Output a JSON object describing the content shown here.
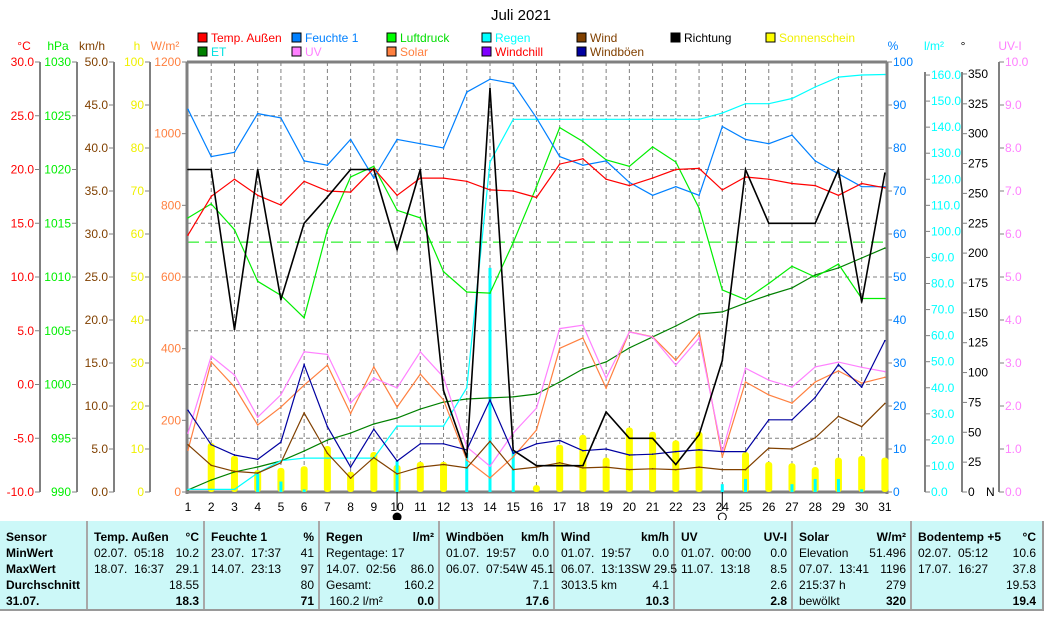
{
  "chart_data": {
    "type": "line",
    "title": "Juli 2021",
    "x": [
      1,
      2,
      3,
      4,
      5,
      6,
      7,
      8,
      9,
      10,
      11,
      12,
      13,
      14,
      15,
      16,
      17,
      18,
      19,
      20,
      21,
      22,
      23,
      24,
      25,
      26,
      27,
      28,
      29,
      30,
      31
    ],
    "x_tick_labels": [
      "1",
      "2",
      "3",
      "4",
      "5",
      "6",
      "7",
      "8",
      "9",
      "10",
      "11",
      "12",
      "13",
      "14",
      "15",
      "16",
      "17",
      "18",
      "19",
      "20",
      "21",
      "22",
      "23",
      "24",
      "25",
      "26",
      "27",
      "28",
      "29",
      "30",
      "31"
    ],
    "grid": true,
    "legend_position": "top",
    "axes": {
      "temp": {
        "unit": "°C",
        "side": "left",
        "color": "#ff0000",
        "range": [
          -10,
          30
        ],
        "ticks": [
          "30.0",
          "25.0",
          "20.0",
          "15.0",
          "10.0",
          "5.0",
          "0.0",
          "-5.0",
          "-10.0"
        ]
      },
      "press": {
        "unit": "hPa",
        "side": "left",
        "color": "#00ee00",
        "range": [
          990,
          1030
        ],
        "ticks": [
          "1030",
          "1025",
          "1020",
          "1015",
          "1010",
          "1005",
          "1000",
          "995",
          "990"
        ]
      },
      "wind": {
        "unit": "km/h",
        "side": "left",
        "color": "#804000",
        "range": [
          0,
          50
        ],
        "ticks": [
          "50.0",
          "45.0",
          "40.0",
          "35.0",
          "30.0",
          "25.0",
          "20.0",
          "15.0",
          "10.0",
          "5.0",
          "0.0"
        ]
      },
      "sun": {
        "unit": "h",
        "side": "left",
        "color": "#f0f000",
        "range": [
          0,
          100
        ],
        "ticks": [
          "100",
          "90",
          "80",
          "70",
          "60",
          "50",
          "40",
          "30",
          "20",
          "10",
          "0"
        ]
      },
      "solar": {
        "unit": "W/m²",
        "side": "left",
        "color": "#ff8040",
        "range": [
          0,
          1200
        ],
        "ticks": [
          "1200",
          "1000",
          "800",
          "600",
          "400",
          "200",
          "0"
        ]
      },
      "hum": {
        "unit": "%",
        "side": "right",
        "color": "#0080ff",
        "range": [
          0,
          100
        ],
        "ticks": [
          "100",
          "90",
          "80",
          "70",
          "60",
          "50",
          "40",
          "30",
          "20",
          "10",
          "0"
        ]
      },
      "rain": {
        "unit": "l/m²",
        "side": "right",
        "color": "#00ffff",
        "range": [
          0,
          165
        ],
        "ticks": [
          "160.0",
          "150.0",
          "140.0",
          "130.0",
          "120.0",
          "110.0",
          "100.0",
          "90.0",
          "80.0",
          "70.0",
          "60.0",
          "50.0",
          "40.0",
          "30.0",
          "20.0",
          "10.0",
          "0.0"
        ]
      },
      "dir": {
        "unit": "°",
        "side": "right",
        "color": "#000000",
        "range": [
          0,
          360
        ],
        "ticks": [
          "350",
          "325",
          "300",
          "275",
          "250",
          "225",
          "200",
          "175",
          "150",
          "125",
          "100",
          "75",
          "50",
          "25",
          "0"
        ],
        "zero_label": "N"
      },
      "uv": {
        "unit": "UV-I",
        "side": "right",
        "color": "#ff80ff",
        "range": [
          0,
          10
        ],
        "ticks": [
          "10.0",
          "9.0",
          "8.0",
          "7.0",
          "6.0",
          "5.0",
          "4.0",
          "3.0",
          "2.0",
          "1.0",
          "0.0"
        ]
      }
    },
    "reference_lines": [
      {
        "axis": "press",
        "value": 1013.25,
        "color": "#00ee00"
      }
    ],
    "bars": [
      {
        "name": "Sonnenschein",
        "axis": "sun",
        "color": "#ffff00",
        "values": [
          0,
          11.4,
          8.4,
          5.1,
          5.6,
          6,
          10.7,
          4.7,
          9.3,
          6.3,
          7,
          7,
          0,
          0,
          0,
          1.6,
          11,
          13.3,
          8,
          15,
          14,
          12,
          14,
          0,
          9.3,
          7,
          6.7,
          5.8,
          8,
          8.4,
          8
        ]
      },
      {
        "name": "Regen (Tag)",
        "axis": "rain",
        "color": "#00ffff",
        "values": [
          0,
          0,
          0,
          7,
          4,
          1,
          0,
          0,
          0,
          12,
          0,
          0,
          15,
          86,
          16,
          0,
          0,
          0,
          0,
          0,
          0,
          0,
          0,
          3,
          5,
          0,
          3,
          5,
          5,
          1,
          0
        ]
      }
    ],
    "series": [
      {
        "name": "ET",
        "axis": "rain",
        "color": "#008000",
        "values": [
          0.8,
          4.6,
          7.7,
          9.6,
          11.9,
          15.7,
          19.9,
          22.6,
          26.1,
          28.4,
          31.8,
          34.5,
          35.7,
          36.1,
          36.5,
          37.6,
          42.2,
          47.2,
          49.9,
          55.3,
          59.5,
          63.7,
          68.3,
          69.1,
          72.5,
          75.6,
          78.3,
          83.3,
          86,
          89.8,
          93.6
        ]
      },
      {
        "name": "Regen",
        "axis": "rain",
        "color": "#00ffff",
        "values": [
          1,
          1,
          1,
          7.3,
          12,
          13,
          13,
          13,
          13,
          25.3,
          25.3,
          25.3,
          40,
          126.6,
          143,
          143,
          143,
          143,
          143,
          143,
          143,
          143,
          143,
          145.4,
          149,
          149,
          151,
          155.4,
          159.2,
          160,
          160.2
        ]
      },
      {
        "name": "Luftdruck",
        "axis": "press",
        "color": "#00ee00",
        "values": [
          1015.5,
          1016.8,
          1014.4,
          1009.6,
          1008.3,
          1006.2,
          1014.4,
          1019.3,
          1020.3,
          1016.2,
          1015.5,
          1010.5,
          1008.6,
          1008.5,
          1013.2,
          1018.4,
          1023.9,
          1022.6,
          1020.9,
          1020.3,
          1022.1,
          1020.7,
          1016.4,
          1008.8,
          1007.9,
          1009.4,
          1011,
          1010,
          1011.2,
          1008,
          1008
        ]
      },
      {
        "name": "Solar",
        "axis": "solar",
        "color": "#ff8040",
        "values": [
          117,
          363,
          293,
          187,
          237,
          298,
          354,
          219,
          349,
          237,
          329,
          257,
          89,
          39,
          98,
          173,
          401,
          430,
          290,
          447,
          433,
          368,
          447,
          98,
          307,
          271,
          248,
          307,
          338,
          304,
          320
        ]
      },
      {
        "name": "UV",
        "axis": "uv",
        "color": "#ff80ff",
        "values": [
          1.37,
          3.16,
          2.72,
          1.74,
          2.26,
          3.26,
          3.2,
          2.07,
          2.65,
          2.42,
          3.26,
          2.67,
          1.05,
          0.6,
          1.37,
          1.95,
          3.8,
          3.88,
          2.65,
          3.72,
          3.6,
          2.95,
          3.58,
          0.93,
          2.88,
          2.6,
          2.44,
          2.91,
          3.02,
          2.9,
          2.8
        ]
      },
      {
        "name": "Wind",
        "axis": "wind",
        "color": "#804000",
        "values": [
          5.5,
          3.1,
          2.4,
          2.2,
          3.4,
          9.2,
          4.5,
          1.6,
          4,
          2.1,
          2.9,
          3.2,
          2.8,
          5.9,
          2.6,
          2.9,
          3.4,
          2.8,
          2.9,
          2.6,
          2.7,
          2.6,
          2.9,
          2.6,
          2.6,
          5.1,
          5,
          6.3,
          8.8,
          7.6,
          10.3
        ]
      },
      {
        "name": "Windböen",
        "axis": "wind",
        "color": "#0000a0",
        "values": [
          9.5,
          5.5,
          4.3,
          3.8,
          5.8,
          14.8,
          7.6,
          2.9,
          7.3,
          3.6,
          5.6,
          5.6,
          4.9,
          10.7,
          4.5,
          5.6,
          6,
          4.8,
          5,
          4.3,
          4.4,
          4.7,
          4.9,
          4.7,
          4.7,
          8.4,
          8.4,
          11,
          14.8,
          12.2,
          17.6
        ]
      },
      {
        "name": "Feuchte 1",
        "axis": "hum",
        "color": "#0080ff",
        "values": [
          89,
          78,
          79,
          88,
          87,
          77,
          76,
          82,
          73,
          82,
          81,
          80,
          93,
          96,
          95,
          87,
          78,
          76,
          77,
          72,
          69,
          71,
          69,
          85,
          82,
          81,
          83,
          77,
          74,
          71,
          71
        ]
      },
      {
        "name": "Temp. Außen",
        "axis": "temp",
        "color": "#ff0000",
        "values": [
          13.9,
          17.5,
          19.1,
          17.6,
          16.7,
          18.9,
          18.0,
          17.9,
          20.1,
          17.6,
          19.2,
          19.2,
          18.9,
          18.1,
          18.0,
          17.4,
          20.5,
          21.0,
          19.1,
          18.5,
          19.2,
          20.0,
          20.1,
          18.1,
          19.3,
          19.1,
          18.7,
          18.5,
          17.6,
          18.7,
          18.3
        ]
      },
      {
        "name": "Richtung",
        "axis": "dir",
        "color": "#000000",
        "values": [
          270,
          270,
          136,
          270,
          161,
          225,
          247,
          270,
          270,
          203,
          270,
          85,
          29,
          338,
          35,
          22,
          22,
          22,
          67,
          45,
          45,
          23,
          48,
          110,
          270,
          225,
          225,
          225,
          270,
          159,
          267
        ]
      }
    ],
    "legend": [
      {
        "label": "Temp. Außen",
        "box": "#ff0000",
        "text": "#ff0000"
      },
      {
        "label": "Feuchte 1",
        "box": "#0080ff",
        "text": "#0080ff"
      },
      {
        "label": "Luftdruck",
        "box": "#00ff00",
        "text": "#00dd00"
      },
      {
        "label": "Regen",
        "box": "#00ffff",
        "text": "#00ffff"
      },
      {
        "label": "Wind",
        "box": "#804000",
        "text": "#804000"
      },
      {
        "label": "Richtung",
        "box": "#000000",
        "text": "#000000"
      },
      {
        "label": "Sonnenschein",
        "box": "#ffff00",
        "text": "#f0f000"
      },
      {
        "label": "ET",
        "box": "#008000",
        "text": "#00e0e0"
      },
      {
        "label": "UV",
        "box": "#ff80ff",
        "text": "#ff80ff"
      },
      {
        "label": "Solar",
        "box": "#ff8040",
        "text": "#ff8040"
      },
      {
        "label": "Windchill",
        "box": "#8000ff",
        "text": "#ff0000"
      },
      {
        "label": "Windböen",
        "box": "#0000a0",
        "text": "#804000"
      }
    ],
    "moon_phases": [
      {
        "day": 10,
        "phase": "new-moon"
      },
      {
        "day": 24,
        "phase": "full-moon"
      }
    ]
  },
  "stats": {
    "row_labels": [
      "Sensor",
      "MinWert",
      "MaxWert",
      "Durchschnitt",
      "31.07."
    ],
    "columns": [
      {
        "name": "Temp. Außen",
        "unit": "°C",
        "rows": [
          [
            "02.07.  05:18",
            "10.2"
          ],
          [
            "18.07.  16:37",
            "29.1"
          ],
          [
            "",
            "18.55"
          ],
          [
            "",
            "18.3"
          ]
        ]
      },
      {
        "name": "Feuchte 1",
        "unit": "%",
        "rows": [
          [
            "23.07.  17:37",
            "41"
          ],
          [
            "14.07.  23:13",
            "97"
          ],
          [
            "",
            "80"
          ],
          [
            "",
            "71"
          ]
        ]
      },
      {
        "name": "Regen",
        "unit": "l/m²",
        "rows": [
          [
            "Regentage: 17",
            ""
          ],
          [
            "14.07.  02:56",
            "86.0"
          ],
          [
            "Gesamt:",
            "160.2"
          ],
          [
            " 160.2 l/m²",
            "0.0"
          ]
        ]
      },
      {
        "name": "Windböen",
        "unit": "km/h",
        "rows": [
          [
            "01.07.  19:57",
            "0.0"
          ],
          [
            "06.07.  07:54",
            "W 45.1"
          ],
          [
            "",
            "7.1"
          ],
          [
            "",
            "17.6"
          ]
        ]
      },
      {
        "name": "Wind",
        "unit": "km/h",
        "rows": [
          [
            "01.07.  19:57",
            "0.0"
          ],
          [
            "06.07.  13:13",
            "SW 29.5"
          ],
          [
            "3013.5 km",
            "4.1"
          ],
          [
            "",
            "10.3"
          ]
        ]
      },
      {
        "name": "UV",
        "unit": "UV-I",
        "rows": [
          [
            "01.07.  00:00",
            "0.0"
          ],
          [
            "11.07.  13:18",
            "8.5"
          ],
          [
            "",
            "2.6"
          ],
          [
            "",
            "2.8"
          ]
        ]
      },
      {
        "name": "Solar",
        "unit": "W/m²",
        "rows": [
          [
            "Elevation",
            "51.496"
          ],
          [
            "07.07.  13:41",
            "1196"
          ],
          [
            "215:37 h",
            "279"
          ],
          [
            "bewölkt",
            "320"
          ]
        ]
      },
      {
        "name": "Bodentemp +5",
        "unit": "°C",
        "rows": [
          [
            "02.07.  05:12",
            "10.6"
          ],
          [
            "17.07.  16:27",
            "37.8"
          ],
          [
            "",
            "19.53"
          ],
          [
            "",
            "19.4"
          ]
        ]
      }
    ]
  }
}
